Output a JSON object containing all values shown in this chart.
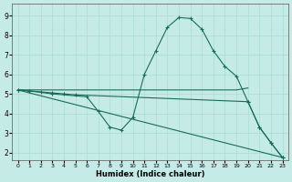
{
  "xlabel": "Humidex (Indice chaleur)",
  "bg_color": "#c5ebe6",
  "grid_color": "#b0ddd8",
  "line_color": "#1a6b5a",
  "x_ticks": [
    0,
    1,
    2,
    3,
    4,
    5,
    6,
    7,
    8,
    9,
    10,
    11,
    12,
    13,
    14,
    15,
    16,
    17,
    18,
    19,
    20,
    21,
    22,
    23
  ],
  "y_ticks": [
    2,
    3,
    4,
    5,
    6,
    7,
    8,
    9
  ],
  "ylim": [
    1.6,
    9.6
  ],
  "xlim": [
    -0.5,
    23.5
  ],
  "series": [
    {
      "x": [
        0,
        23
      ],
      "y": [
        5.2,
        1.75
      ],
      "has_markers": false
    },
    {
      "x": [
        0,
        19,
        20
      ],
      "y": [
        5.2,
        5.2,
        5.3
      ],
      "has_markers": false
    },
    {
      "x": [
        0,
        1,
        3,
        6,
        7,
        8,
        9,
        10,
        11,
        12,
        13,
        14,
        15,
        16,
        17,
        18,
        19,
        20,
        21,
        22,
        23
      ],
      "y": [
        5.2,
        5.15,
        5.0,
        4.85,
        4.1,
        3.3,
        3.15,
        3.8,
        6.0,
        7.2,
        8.4,
        8.9,
        8.85,
        8.3,
        7.2,
        6.4,
        5.9,
        4.6,
        3.3,
        2.5,
        1.75
      ],
      "has_markers": true
    },
    {
      "x": [
        0,
        1,
        2,
        3,
        4,
        5,
        20,
        21,
        22,
        23
      ],
      "y": [
        5.2,
        5.15,
        5.1,
        5.05,
        5.0,
        4.95,
        4.6,
        3.3,
        2.5,
        1.75
      ],
      "has_markers": true
    }
  ]
}
